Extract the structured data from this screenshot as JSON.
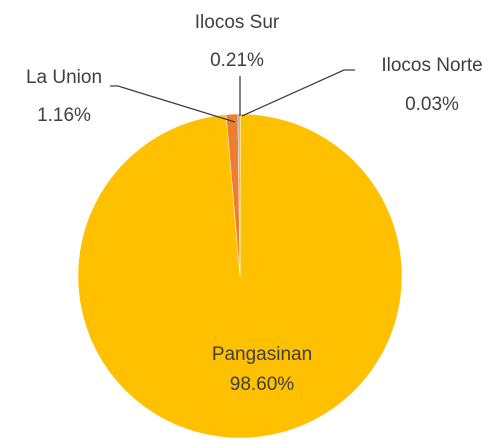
{
  "chart_data": {
    "type": "pie",
    "categories": [
      "Ilocos Norte",
      "Pangasinan",
      "La Union",
      "Ilocos Sur"
    ],
    "values": [
      0.03,
      98.6,
      1.16,
      0.21
    ],
    "value_labels": [
      "0.03%",
      "98.60%",
      "1.16%",
      "0.21%"
    ],
    "colors": [
      "#4472C4",
      "#FFC000",
      "#ED7D31",
      "#A5A5A5"
    ]
  }
}
